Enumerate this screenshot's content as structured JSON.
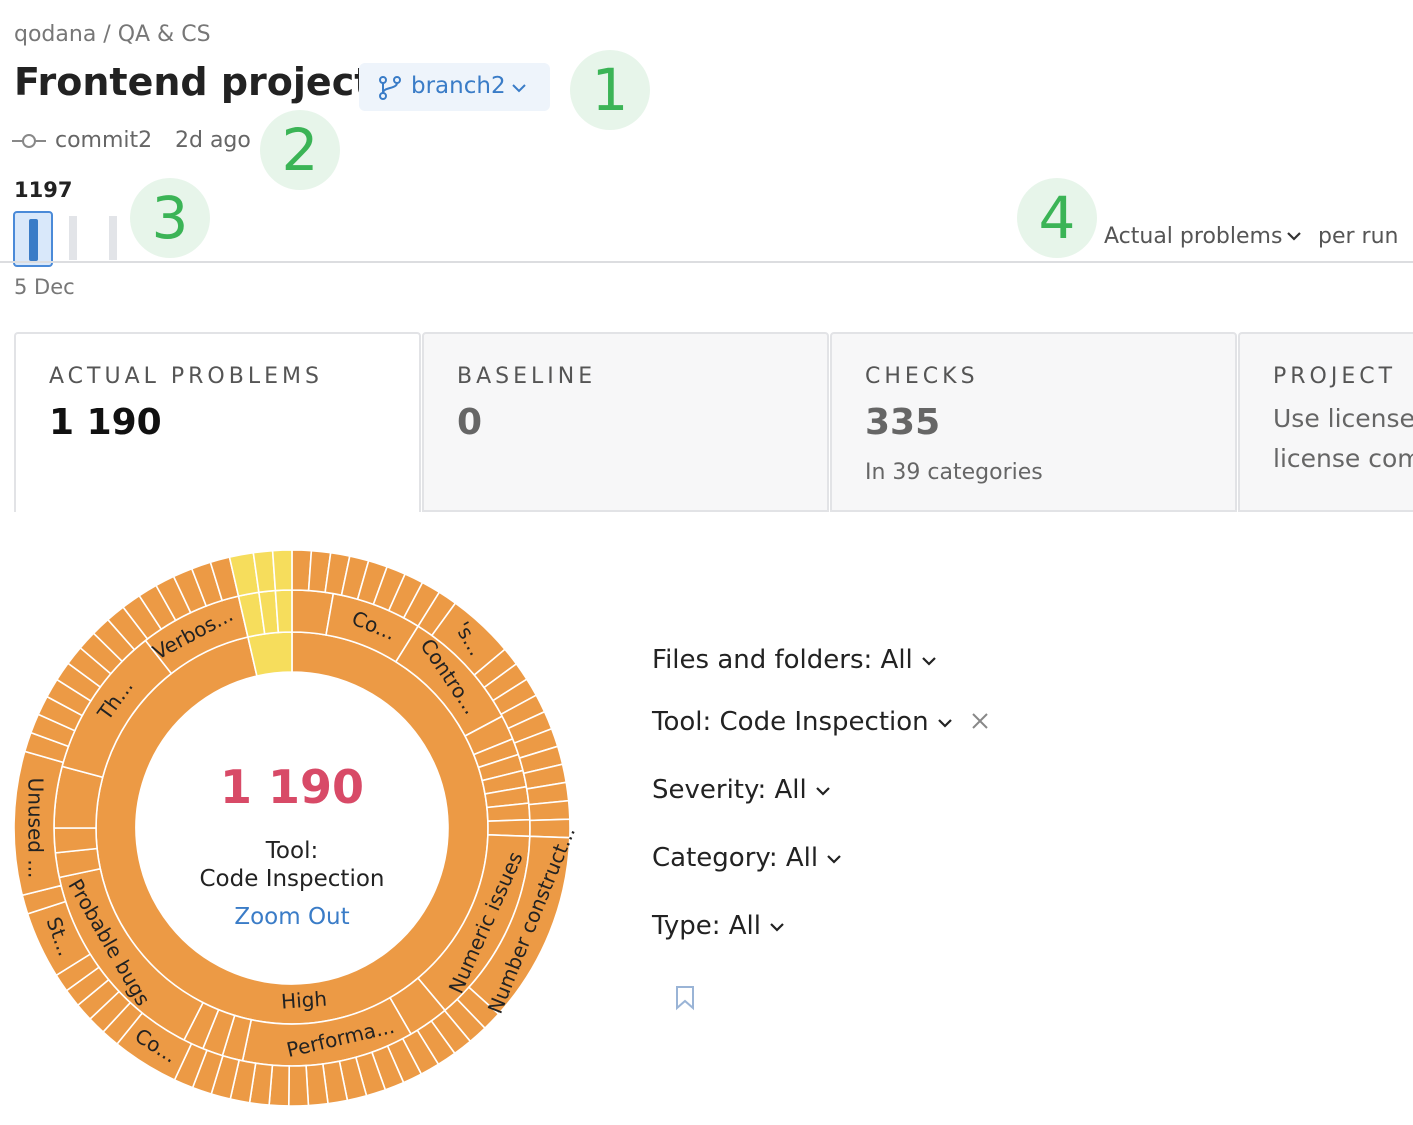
{
  "breadcrumb": "qodana / QA & CS",
  "title": "Frontend project",
  "branch": "branch2",
  "callouts": [
    "1",
    "2",
    "3",
    "4"
  ],
  "commit": {
    "name": "commit2",
    "age": "2d ago"
  },
  "history": {
    "top_label": "1197",
    "date": "5 Dec",
    "metric": "Actual problems",
    "period": "per run"
  },
  "tabs": [
    {
      "label": "ACTUAL PROBLEMS",
      "value": "1 190"
    },
    {
      "label": "BASELINE",
      "value": "0"
    },
    {
      "label": "CHECKS",
      "value": "335",
      "note": "In 39 categories"
    },
    {
      "label": "PROJECT",
      "lines": [
        "Use license",
        "license com"
      ]
    }
  ],
  "sunburst": {
    "center_value": "1 190",
    "center_lines": [
      "Tool:",
      "Code Inspection"
    ],
    "zoom": "Zoom Out",
    "inner_label": "High",
    "middle_labels": [
      "Co...",
      "Contro...",
      "Numeric issues",
      "Performa...",
      "Probable bugs",
      "Th...",
      "Verbos..."
    ],
    "outer_labels": [
      "'s...",
      "Number construct...",
      "Co...",
      "St...",
      "Unused ..."
    ]
  },
  "filters": [
    "Files and folders: All",
    "Tool: Code Inspection",
    "Severity: All",
    "Category: All",
    "Type: All"
  ]
}
